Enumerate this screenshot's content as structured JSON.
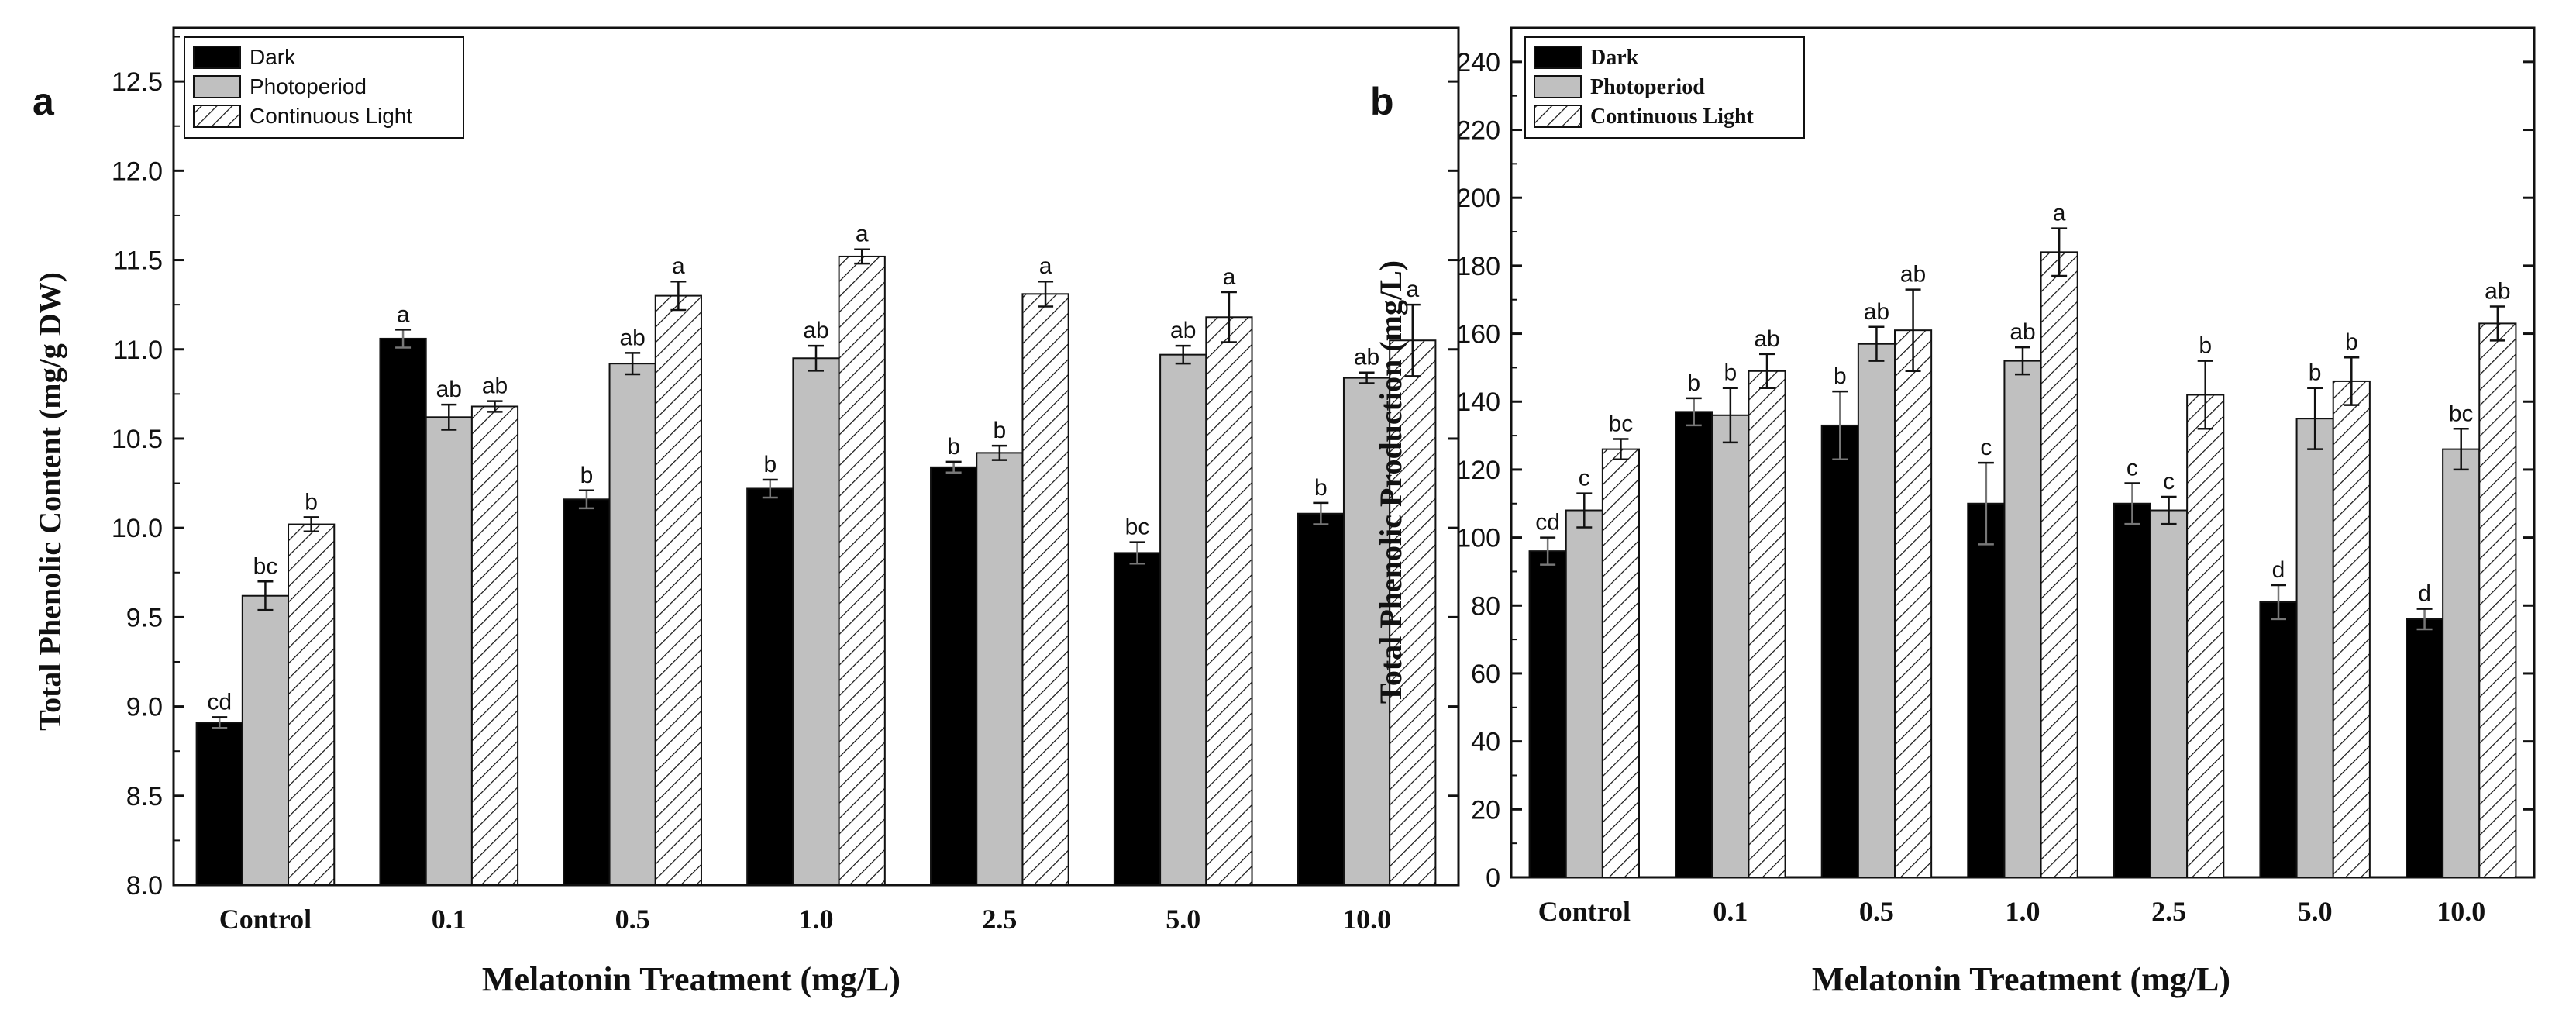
{
  "chart_data": [
    {
      "type": "bar",
      "panel_label": "a",
      "title": "",
      "xlabel": "Melatonin Treatment (mg/L)",
      "ylabel": "Total Phenolic Content (mg/g DW)",
      "ylim": [
        8.0,
        12.8
      ],
      "yticks": [
        8.0,
        8.5,
        9.0,
        9.5,
        10.0,
        10.5,
        11.0,
        11.5,
        12.0,
        12.5
      ],
      "ytick_labels": [
        "8.0",
        "8.5",
        "9.0",
        "9.5",
        "10.0",
        "10.5",
        "11.0",
        "11.5",
        "12.0",
        "12.5"
      ],
      "categories": [
        "Control",
        "0.1",
        "0.5",
        "1.0",
        "2.5",
        "5.0",
        "10.0"
      ],
      "legend_position": "top-left",
      "series": [
        {
          "name": "Dark",
          "fill": "#000000",
          "pattern": "solid",
          "values": [
            8.91,
            11.06,
            10.16,
            10.22,
            10.34,
            9.86,
            10.08
          ],
          "errors": [
            0.03,
            0.05,
            0.05,
            0.05,
            0.03,
            0.06,
            0.06
          ],
          "letters": [
            "cd",
            "a",
            "b",
            "b",
            "b",
            "bc",
            "b"
          ]
        },
        {
          "name": "Photoperiod",
          "fill": "#c0c0c0",
          "pattern": "solid",
          "values": [
            9.62,
            10.62,
            10.92,
            10.95,
            10.42,
            10.97,
            10.84
          ],
          "errors": [
            0.08,
            0.07,
            0.06,
            0.07,
            0.04,
            0.05,
            0.03
          ],
          "letters": [
            "bc",
            "ab",
            "ab",
            "ab",
            "b",
            "ab",
            "ab"
          ]
        },
        {
          "name": "Continuous Light",
          "fill": "#ffffff",
          "pattern": "hatch",
          "values": [
            10.02,
            10.68,
            11.3,
            11.52,
            11.31,
            11.18,
            11.05
          ],
          "errors": [
            0.04,
            0.03,
            0.08,
            0.04,
            0.07,
            0.14,
            0.2
          ],
          "letters": [
            "b",
            "ab",
            "a",
            "a",
            "a",
            "a",
            "a"
          ]
        }
      ]
    },
    {
      "type": "bar",
      "panel_label": "b",
      "title": "",
      "xlabel": "Melatonin Treatment (mg/L)",
      "ylabel": "Total Phenolic Production (mg/L)",
      "ylim": [
        0,
        250
      ],
      "yticks": [
        0,
        20,
        40,
        60,
        80,
        100,
        120,
        140,
        160,
        180,
        200,
        220,
        240
      ],
      "ytick_labels": [
        "0",
        "20",
        "40",
        "60",
        "80",
        "100",
        "120",
        "140",
        "160",
        "180",
        "200",
        "220",
        "240"
      ],
      "categories": [
        "Control",
        "0.1",
        "0.5",
        "1.0",
        "2.5",
        "5.0",
        "10.0"
      ],
      "legend_position": "top-left",
      "series": [
        {
          "name": "Dark",
          "fill": "#000000",
          "pattern": "solid",
          "values": [
            96,
            137,
            133,
            110,
            110,
            81,
            76
          ],
          "errors": [
            4,
            4,
            10,
            12,
            6,
            5,
            3
          ],
          "letters": [
            "cd",
            "b",
            "b",
            "c",
            "c",
            "d",
            "d"
          ]
        },
        {
          "name": "Photoperiod",
          "fill": "#c0c0c0",
          "pattern": "solid",
          "values": [
            108,
            136,
            157,
            152,
            108,
            135,
            126
          ],
          "errors": [
            5,
            8,
            5,
            4,
            4,
            9,
            6
          ],
          "letters": [
            "c",
            "b",
            "ab",
            "ab",
            "c",
            "b",
            "bc"
          ]
        },
        {
          "name": "Continuous Light",
          "fill": "#ffffff",
          "pattern": "hatch",
          "values": [
            126,
            149,
            161,
            184,
            142,
            146,
            163
          ],
          "errors": [
            3,
            5,
            12,
            7,
            10,
            7,
            5
          ],
          "letters": [
            "bc",
            "ab",
            "ab",
            "a",
            "b",
            "b",
            "ab"
          ]
        }
      ]
    }
  ]
}
